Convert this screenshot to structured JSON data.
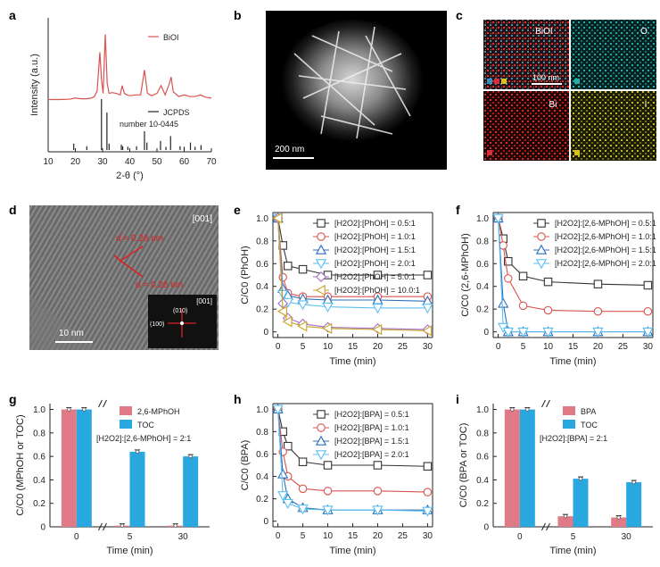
{
  "panel_letters": [
    "a",
    "b",
    "c",
    "d",
    "e",
    "f",
    "g",
    "h",
    "i"
  ],
  "images": {
    "b": {
      "scale_bar": "200 nm"
    },
    "c": {
      "tiles": [
        "BiOI",
        "O",
        "Bi",
        "I"
      ],
      "scale_bar": "100 nm"
    },
    "d": {
      "zone_axis": "[001]",
      "d_label_1": "d = 0.28 nm",
      "d_label_2": "d = 0.28 nm",
      "scale_bar": "10 nm",
      "fft_axis": "[001]",
      "fft_010": "(010)",
      "fft_100": "(100)"
    }
  },
  "colors": {
    "black": "#333333",
    "red": "#d9534f",
    "blue": "#2c6fb7",
    "cyan": "#5bc0f0",
    "purple": "#a070c8",
    "gold": "#c9a227",
    "bar_pink": "#e07a86",
    "bar_blue": "#29a8e0"
  },
  "chart_data": [
    {
      "panel": "a",
      "type": "line",
      "xlabel": "2-θ (°)",
      "ylabel": "Intensity (a.u.)",
      "xlim": [
        10,
        70
      ],
      "xticks": [
        10,
        20,
        30,
        40,
        50,
        60,
        70
      ],
      "legend": [
        "BiOI",
        "JCPDS number 10-0445"
      ],
      "series": [
        {
          "name": "BiOI",
          "x": [
            10,
            14,
            18,
            20,
            22,
            24,
            26,
            27,
            28,
            29.0,
            29.6,
            30.2,
            31.0,
            31.7,
            32.4,
            33.5,
            35,
            36.5,
            37.2,
            38,
            39,
            40,
            42,
            44,
            45.4,
            46.5,
            48,
            50,
            51.5,
            53,
            54.5,
            55.2,
            56,
            58,
            60,
            62,
            64,
            66,
            68,
            70
          ],
          "y": [
            0.04,
            0.04,
            0.045,
            0.06,
            0.05,
            0.05,
            0.06,
            0.08,
            0.15,
            0.65,
            0.3,
            0.12,
            0.88,
            0.25,
            0.12,
            0.13,
            0.12,
            0.1,
            0.22,
            0.12,
            0.1,
            0.09,
            0.1,
            0.1,
            0.42,
            0.12,
            0.09,
            0.12,
            0.22,
            0.1,
            0.24,
            0.33,
            0.14,
            0.08,
            0.1,
            0.08,
            0.08,
            0.1,
            0.07,
            0.06
          ]
        },
        {
          "name": "JCPDS number 10-0445",
          "sticks_x": [
            19.4,
            24.2,
            29.6,
            31.6,
            32.4,
            36.9,
            37.4,
            39.3,
            42.5,
            45.4,
            46.3,
            51.3,
            53.3,
            55.0,
            58.5,
            60.0,
            62.3,
            64.0,
            66.2
          ],
          "sticks_h": [
            0.12,
            0.07,
            0.95,
            0.7,
            0.12,
            0.1,
            0.07,
            0.06,
            0.07,
            0.35,
            0.14,
            0.17,
            0.06,
            0.26,
            0.07,
            0.06,
            0.14,
            0.06,
            0.09
          ]
        }
      ]
    },
    {
      "panel": "e",
      "type": "line",
      "xlabel": "Time (min)",
      "ylabel": "C/C0 (PhOH)",
      "xlim": [
        -1,
        31
      ],
      "ylim": [
        -0.05,
        1.05
      ],
      "xticks": [
        0,
        5,
        10,
        15,
        20,
        25,
        30
      ],
      "yticks": [
        0,
        0.2,
        0.4,
        0.6,
        0.8,
        1.0
      ],
      "x": [
        0,
        1,
        2,
        5,
        10,
        20,
        30
      ],
      "series": [
        {
          "name": "[H2O2]:[PhOH] = 0.5:1",
          "marker": "square",
          "color": "black",
          "values": [
            1,
            0.76,
            0.58,
            0.55,
            0.5,
            0.5,
            0.5
          ]
        },
        {
          "name": "[H2O2]:[PhOH] = 1.0:1",
          "marker": "circle",
          "color": "red",
          "values": [
            1,
            0.48,
            0.34,
            0.31,
            0.31,
            0.31,
            0.31
          ]
        },
        {
          "name": "[H2O2]:[PhOH] = 1.5:1",
          "marker": "triangle",
          "color": "blue",
          "values": [
            1,
            0.38,
            0.32,
            0.29,
            0.28,
            0.28,
            0.27
          ]
        },
        {
          "name": "[H2O2]:[PhOH] = 2.0:1",
          "marker": "tri-down",
          "color": "cyan",
          "values": [
            1,
            0.33,
            0.26,
            0.24,
            0.22,
            0.21,
            0.21
          ]
        },
        {
          "name": "[H2O2]:[PhOH] = 5.0:1",
          "marker": "diamond",
          "color": "purple",
          "values": [
            1,
            0.25,
            0.12,
            0.07,
            0.04,
            0.03,
            0.02
          ]
        },
        {
          "name": "[H2O2]:[PhOH] = 10.0:1",
          "marker": "tri-left",
          "color": "gold",
          "values": [
            1,
            0.18,
            0.09,
            0.05,
            0.03,
            0.02,
            0.01
          ]
        }
      ]
    },
    {
      "panel": "f",
      "type": "line",
      "xlabel": "Time (min)",
      "ylabel": "C/C0 (2,6-MPhOH)",
      "xlim": [
        -1,
        31
      ],
      "ylim": [
        -0.05,
        1.05
      ],
      "xticks": [
        0,
        5,
        10,
        15,
        20,
        25,
        30
      ],
      "yticks": [
        0,
        0.2,
        0.4,
        0.6,
        0.8,
        1.0
      ],
      "x": [
        0,
        1,
        2,
        5,
        10,
        20,
        30
      ],
      "series": [
        {
          "name": "[H2O2]:[2,6-MPhOH] = 0.5:1",
          "marker": "square",
          "color": "black",
          "values": [
            1,
            0.82,
            0.62,
            0.49,
            0.44,
            0.42,
            0.41
          ]
        },
        {
          "name": "[H2O2]:[2,6-MPhOH] = 1.0:1",
          "marker": "circle",
          "color": "red",
          "values": [
            1,
            0.76,
            0.47,
            0.23,
            0.19,
            0.18,
            0.18
          ]
        },
        {
          "name": "[H2O2]:[2,6-MPhOH] = 1.5:1",
          "marker": "triangle",
          "color": "blue",
          "values": [
            1,
            0.25,
            0.0,
            0.0,
            0.0,
            0.0,
            0.0
          ]
        },
        {
          "name": "[H2O2]:[2,6-MPhOH] = 2.0:1",
          "marker": "tri-down",
          "color": "cyan",
          "values": [
            1,
            0.04,
            0.0,
            0.0,
            0.0,
            0.0,
            0.0
          ]
        }
      ]
    },
    {
      "panel": "g",
      "type": "bar",
      "xlabel": "Time (min)",
      "ylabel": "C/C0 (MPhOH or TOC)",
      "categories": [
        "0",
        "5",
        "30"
      ],
      "ylim": [
        0,
        1.05
      ],
      "yticks": [
        0,
        0.2,
        0.4,
        0.6,
        0.8,
        1.0
      ],
      "annotation": "[H2O2]:[2,6-MPhOH] = 2:1",
      "series": [
        {
          "name": "2,6-MPhOH",
          "color": "bar_pink",
          "values": [
            1.0,
            0.01,
            0.01
          ]
        },
        {
          "name": "TOC",
          "color": "bar_blue",
          "values": [
            1.0,
            0.64,
            0.6
          ]
        }
      ]
    },
    {
      "panel": "h",
      "type": "line",
      "xlabel": "Time (min)",
      "ylabel": "C/C0 (BPA)",
      "xlim": [
        -1,
        31
      ],
      "ylim": [
        -0.05,
        1.05
      ],
      "xticks": [
        0,
        5,
        10,
        15,
        20,
        25,
        30
      ],
      "yticks": [
        0,
        0.2,
        0.4,
        0.6,
        0.8,
        1.0
      ],
      "x": [
        0,
        1,
        2,
        5,
        10,
        20,
        30
      ],
      "series": [
        {
          "name": "[H2O2]:[BPA] = 0.5:1",
          "marker": "square",
          "color": "black",
          "values": [
            1,
            0.8,
            0.67,
            0.53,
            0.5,
            0.5,
            0.49
          ]
        },
        {
          "name": "[H2O2]:[BPA] = 1.0:1",
          "marker": "circle",
          "color": "red",
          "values": [
            1,
            0.62,
            0.4,
            0.29,
            0.27,
            0.27,
            0.26
          ]
        },
        {
          "name": "[H2O2]:[BPA] = 1.5:1",
          "marker": "triangle",
          "color": "blue",
          "values": [
            1,
            0.42,
            0.2,
            0.12,
            0.1,
            0.1,
            0.1
          ]
        },
        {
          "name": "[H2O2]:[BPA] = 2.0:1",
          "marker": "tri-down",
          "color": "cyan",
          "values": [
            1,
            0.23,
            0.16,
            0.11,
            0.1,
            0.1,
            0.09
          ]
        }
      ]
    },
    {
      "panel": "i",
      "type": "bar",
      "xlabel": "Time (min)",
      "ylabel": "C/C0 (BPA or TOC)",
      "categories": [
        "0",
        "5",
        "30"
      ],
      "ylim": [
        0,
        1.05
      ],
      "yticks": [
        0,
        0.2,
        0.4,
        0.6,
        0.8,
        1.0
      ],
      "annotation": "[H2O2]:[BPA] = 2:1",
      "series": [
        {
          "name": "BPA",
          "color": "bar_pink",
          "values": [
            1.0,
            0.09,
            0.08
          ]
        },
        {
          "name": "TOC",
          "color": "bar_blue",
          "values": [
            1.0,
            0.41,
            0.38
          ]
        }
      ]
    }
  ]
}
